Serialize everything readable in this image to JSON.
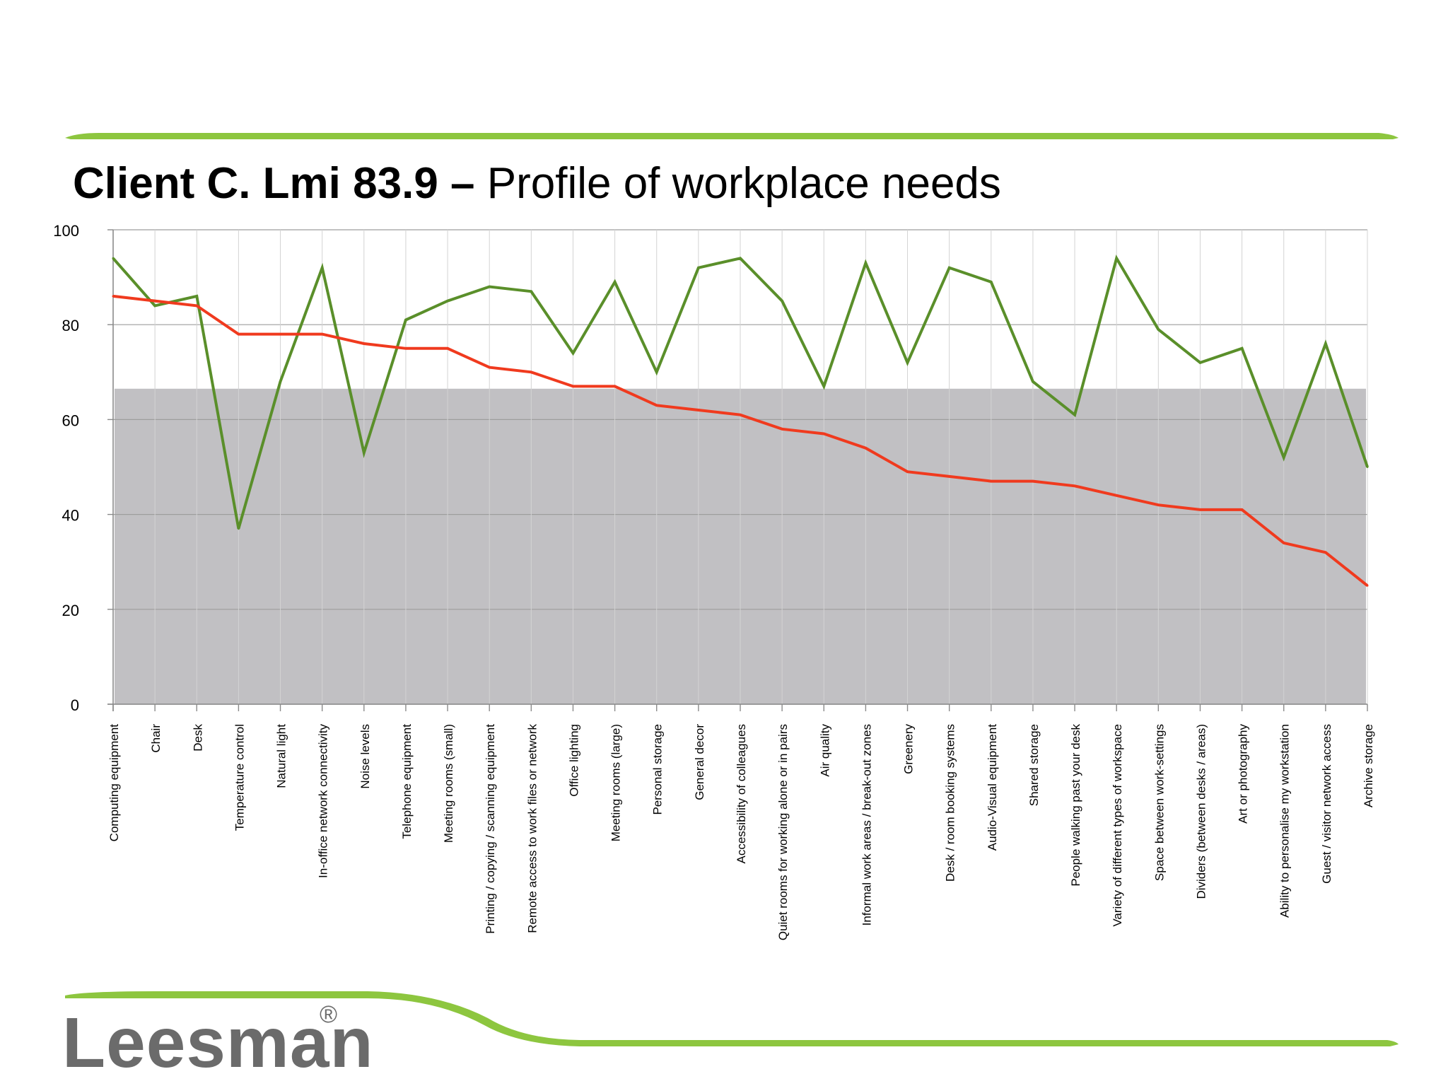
{
  "slide": {
    "title_bold": "Client C. Lmi 83.9 –",
    "title_rest": " Profile of workplace needs"
  },
  "logo": {
    "text": "Leesman",
    "reg": "®"
  },
  "colors": {
    "green_series": "#5a8f2a",
    "red_series": "#f03a1e",
    "band": "#c1c0c3",
    "grid": "#9d9d9d",
    "accent": "#8dc63f"
  },
  "chart_data": {
    "type": "line",
    "title": "Client C. Lmi 83.9 – Profile of workplace needs",
    "xlabel": "",
    "ylabel": "",
    "ylim": [
      0,
      100
    ],
    "yticks": [
      0,
      20,
      40,
      60,
      80,
      100
    ],
    "ytick_labels": [
      "0",
      "20",
      "40",
      "60",
      "80",
      "100"
    ],
    "grid": true,
    "band": {
      "from": 0,
      "to": 66.5
    },
    "categories": [
      "Computing equipment",
      "Chair",
      "Desk",
      "Temperature control",
      "Natural light",
      "In-office network connectivity",
      "Noise levels",
      "Telephone equipment",
      "Meeting rooms (small)",
      "Printing / copying / scanning equipment",
      "Remote access to work files or network",
      "Office lighting",
      "Meeting rooms (large)",
      "Personal storage",
      "General decor",
      "Accessibility of colleagues",
      "Quiet rooms for working alone or in pairs",
      "Air quality",
      "Informal work areas / break-out zones",
      "Greenery",
      "Desk / room booking systems",
      "Audio-Visual equipment",
      "Shared storage",
      "People walking past your desk",
      "Variety of different types of workspace",
      "Space between work-settings",
      "Dividers (between desks / areas)",
      "Art or photography",
      "Ability to personalise my workstation",
      "Guest / visitor network access",
      "Archive storage"
    ],
    "series": [
      {
        "name": "green",
        "color": "#5a8f2a",
        "values": [
          94,
          84,
          86,
          37,
          68,
          92,
          53,
          81,
          85,
          88,
          87,
          74,
          89,
          70,
          92,
          94,
          85,
          67,
          93,
          72,
          92,
          89,
          68,
          61,
          94,
          79,
          72,
          75,
          52,
          76,
          50
        ]
      },
      {
        "name": "red",
        "color": "#f03a1e",
        "values": [
          86,
          85,
          84,
          78,
          78,
          78,
          76,
          75,
          75,
          71,
          70,
          67,
          67,
          63,
          62,
          61,
          58,
          57,
          54,
          49,
          48,
          47,
          47,
          46,
          44,
          42,
          41,
          41,
          34,
          32,
          25
        ]
      }
    ]
  }
}
